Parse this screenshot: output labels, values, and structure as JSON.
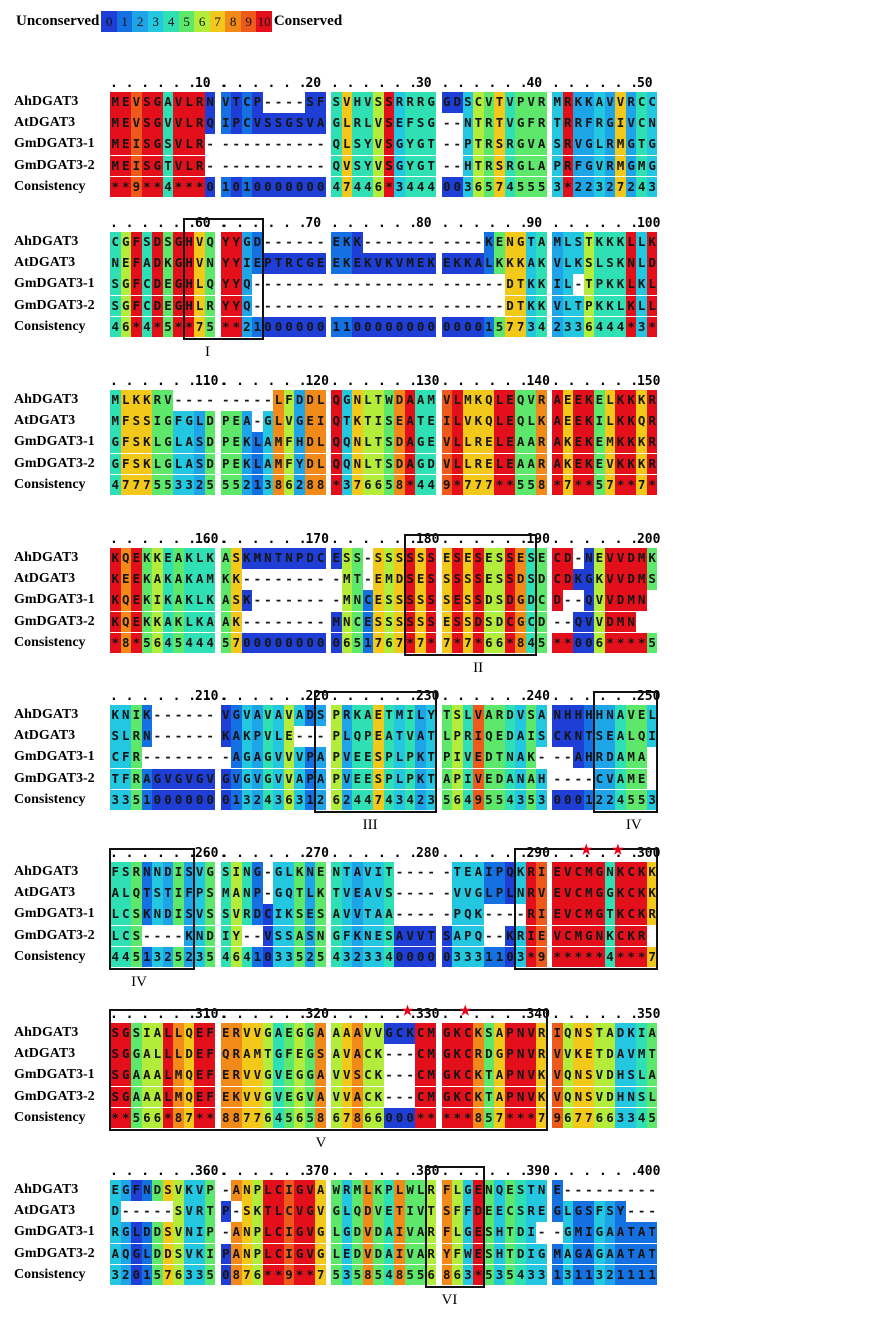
{
  "legend": {
    "left_label": "Unconserved",
    "right_label": "Conserved",
    "scale": [
      "0",
      "1",
      "2",
      "3",
      "4",
      "5",
      "6",
      "7",
      "8",
      "9",
      "10"
    ]
  },
  "colors": {
    "0": "#1f3ed6",
    "1": "#1570e2",
    "2": "#1ea5e8",
    "3": "#23c7e0",
    "4": "#2fe0b4",
    "5": "#5ee86b",
    "6": "#b3ec3a",
    "7": "#f2c81a",
    "8": "#f28a1a",
    "9": "#ee5a1c",
    "10": "#e3101c"
  },
  "row_names": [
    "AhDGAT3",
    "AtDGAT3",
    "GmDGAT3-1",
    "GmDGAT3-2",
    "Consistency"
  ],
  "blocks": [
    {
      "start": 1,
      "sequences": [
        "MEVSGAVLRNVTCP----SFSVHVSSRRRGGDSCVTVPVRMRKKAVVRCC",
        "MEVSGVVLRQIPCVSSGSVAGLRLVSEFSG--NTRTVGFRTRRFRGIVCN",
        "MEISGSVLR-----------QLSYVSGYGT--PTRSRGVASRVGLRMGTG",
        "MEISGTVLR-----------QVSYVSGYGT--HTRSRGLAPRFGVRMGMG"
      ],
      "consistency": "**9**4***0101000000047446*344400365745553*22327243"
    },
    {
      "start": 51,
      "sequences": [
        "CGFSDSGHVQYYGD------EKK-----------KENGTAMLSTKKKLLK",
        "NEFADKGHVNYYIEPTRCGEEKEKVKVMEKEKKALKKKAKVLKSLSKNLD",
        "SGFCDEGHLQYYQ-----------------------DTKKIL-TPKKLKLLK",
        "SGFCDEGHLRYYQ-----------------------DTKKVLTPKKLKLLK"
      ],
      "consistency": "46*4*5**75**21000000110000000000001577342336444*3*6"
    },
    {
      "start": 101,
      "sequences": [
        "MLKKRV---------LFDDLQGNLTWDAAMVLMKQLEQVRAEEKELKKKR",
        "MFSSIGFGLDPEA-GLVGEIQTKTISEATEILVKQLEQLKAEEKILKKQR",
        "GFSKLGLASDPEKLAMFHDLQQNLTSDAGEVLLRELEAARAKEKEMKKKR",
        "GFSKLGLASDPEKLAMFYDLQQNLTSDAGDVLLRELEAARAKEKEVKKKR"
      ],
      "consistency": "4777553325552138628 8*3766 58*449*777**558*7**57**7*"
    },
    {
      "start": 151,
      "sequences": [
        "KQEKKEAKLKASKMNTNPDCESS-SSSSSSESESESSESECD-NEVVDMK",
        "KEEKAKAKAMKK---------MT-EMDSESSSSSESSDSDCDKGKVVDMS",
        "KQEKIKAKLKASK--------MNCESSSSSSESSDSDGDCD--QVVDMN",
        "KQEKKAKLKAAK--------MNCESSSSSSESSDSDCGCD--QVVDMN"
      ],
      "consistency": "*8*5645444570000000006517 67*7*7*7*66*845**006****5"
    },
    {
      "start": 201,
      "sequences": [
        "KNIK------VGVAVAVADSPRKAETMILYTSLVARDVSANHHHHNAVEL",
        "SLRN------KAKPVLE---PLQPEATVATLPRIQEDAISCKNTSEALQI",
        "CFR--------AGAGVVVPAPVEESPLPKTPIVEDTNAK---AHRDAMA",
        "TFRAGVGVGVGVGVGVVAPAPVEESPLPKTAPIVEDANAH----CVAME"
      ],
      "consistency": "33510000000132436312624474342356495543530001224553"
    },
    {
      "start": 251,
      "sequences": [
        "FSRNNDISVGSING-GLKNENTAVIT-----TEAIPQKRIEVCMGNKCKK",
        "ALQTSTIFPSMANP-GQTLKTVEAVS-----VVGLPLNRVEVCMGGKCKK",
        "LCSKNDISVSSVRDCIKSESAVVTAA-----PQK----RIEVCMGTKCKR",
        "LCS----KNDIY--VSSASNGFKNESAVVTSAPQ--KRIEVCMGNKCKR"
      ],
      "consistency": "44513252354641033525432334000003331103*9*****4***7"
    },
    {
      "start": 301,
      "sequences": [
        "SGSIALLQEFERVVGAEGGAAAAVVGCKCMGKCKSAPNVRIQNSTADKIA",
        "SGGALLLDEFQRAMTGFEGSAVACK---CMGKCRDGPNVRVVKETDAVMT",
        "SGAAALMQEFERVVGVEGGAVVSCK---CMGKCKTAPNVKVQNSVDHSLA",
        "SGAAALMQEFEKVVGVEGVAVVACK---CMGKCKTAPNVKVQNSVDHNSL"
      ],
      "consistency": "**566*87**88776456586786600 0** ***857***7967766 3345"
    },
    {
      "start": 351,
      "sequences": [
        "EGFNDSVKVP-ANPLCIGVAWRMLKPLWLRFLGENQESTNE---------",
        "D-----SVRTP-SKTLCVGVGLQDVETIVTSFFDEECSREGLGSFSY----",
        "RGLDDSVNIP-ANPLCIGVGLGDVDAIVARFLGESHTDI--GMIGAATAT",
        "AQGLDDSVKIPANPLCIGVGLEDVDAIVARYFWESHTDIGMAGAGAATAT"
      ],
      "consistency": "32015763350876**9**75358548556863*535433131132111 1"
    }
  ],
  "motifs": [
    "I",
    "II",
    "III",
    "IV",
    "IV",
    "V",
    "VI"
  ]
}
